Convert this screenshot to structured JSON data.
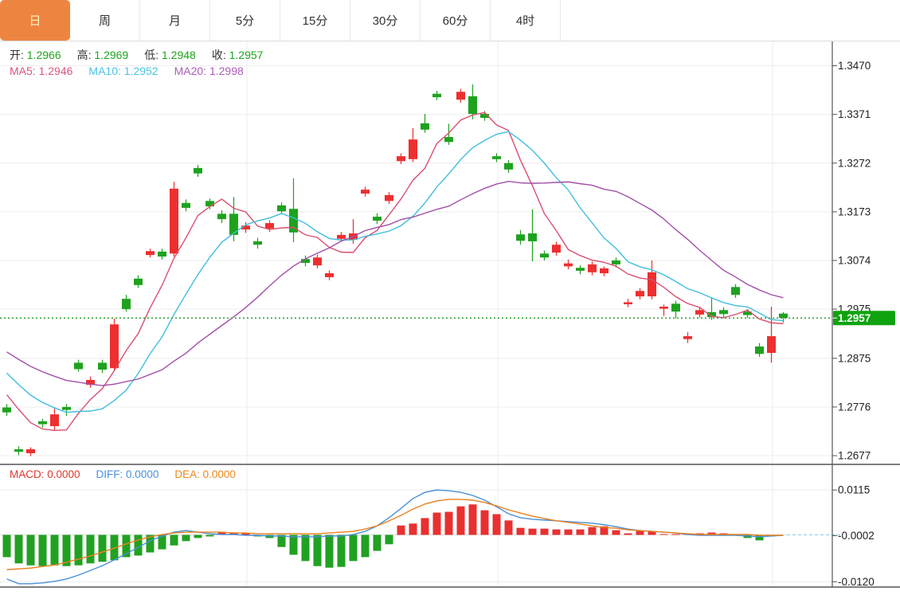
{
  "tabs": {
    "items": [
      {
        "label": "日",
        "active": true
      },
      {
        "label": "周",
        "active": false
      },
      {
        "label": "月",
        "active": false
      },
      {
        "label": "5分",
        "active": false
      },
      {
        "label": "15分",
        "active": false
      },
      {
        "label": "30分",
        "active": false
      },
      {
        "label": "60分",
        "active": false
      },
      {
        "label": "4时",
        "active": false
      }
    ],
    "active_bg": "#ed8540",
    "active_text": "#fbf2c0"
  },
  "ohlc_legend": {
    "items": [
      {
        "label": "开:",
        "value": "1.2966"
      },
      {
        "label": "高:",
        "value": "1.2969"
      },
      {
        "label": "低:",
        "value": "1.2948"
      },
      {
        "label": "收:",
        "value": "1.2957"
      }
    ],
    "value_color": "#1ca61c"
  },
  "ma_legend": {
    "items": [
      {
        "label": "MA5:",
        "value": "1.2946",
        "color": "#e0537a"
      },
      {
        "label": "MA10:",
        "value": "1.2952",
        "color": "#4cc3e2"
      },
      {
        "label": "MA20:",
        "value": "1.2998",
        "color": "#ab5cb8"
      }
    ]
  },
  "macd_legend": {
    "items": [
      {
        "label": "MACD:",
        "value": "0.0000",
        "color": "#d93a2e"
      },
      {
        "label": "DIFF:",
        "value": "0.0000",
        "color": "#4a90d9"
      },
      {
        "label": "DEA:",
        "value": "0.0000",
        "color": "#e8881f"
      }
    ]
  },
  "colors": {
    "up": "#ee2f2f",
    "down": "#1ea21e",
    "ma5": "#d94f6e",
    "ma10": "#41bedc",
    "ma20": "#a14fa8",
    "diff_line": "#4a90d9",
    "dea_line": "#e8811d",
    "hist_up": "#e93030",
    "hist_down": "#21a121",
    "grid": "#ececec",
    "axis_line": "#555555",
    "axis_text": "#222222",
    "current_price_line": "#2fa52f",
    "current_price_badge": "#0fa30f",
    "badge_text": "#ffffff",
    "zero_dash": "#85c9ea"
  },
  "chart_data": {
    "type": "candlestick+macd",
    "title": "",
    "legend_position": "top-left-overlay",
    "grid": true,
    "price_axis": {
      "side": "right",
      "ticks": [
        {
          "value": 1.347,
          "label": "1.3470"
        },
        {
          "value": 1.3371,
          "label": "1.3371"
        },
        {
          "value": 1.3272,
          "label": "1.3272"
        },
        {
          "value": 1.3173,
          "label": "1.3173"
        },
        {
          "value": 1.3074,
          "label": "1.3074"
        },
        {
          "value": 1.2975,
          "label": "1.2975"
        },
        {
          "value": 1.2875,
          "label": "1.2875"
        },
        {
          "value": 1.2776,
          "label": "1.2776"
        },
        {
          "value": 1.2677,
          "label": "1.2677"
        }
      ]
    },
    "current_price": {
      "value": 1.2957,
      "label": "1.2957"
    },
    "macd_axis": {
      "ticks": [
        {
          "value": 0.0115,
          "label": "0.0115"
        },
        {
          "value": -0.0002,
          "label": "-0.0002"
        },
        {
          "value": -0.012,
          "label": "-0.0120"
        }
      ]
    },
    "time_gridline_indices": [
      20,
      41,
      64
    ],
    "ma_periods": [
      5,
      10,
      20
    ],
    "ma_seed_closes": [
      1.299,
      1.2975,
      1.296,
      1.2945,
      1.2935,
      1.2925,
      1.2915,
      1.2905,
      1.289,
      1.287,
      1.292,
      1.2905,
      1.289,
      1.287,
      1.286,
      1.2835,
      1.2825,
      1.2805,
      1.2775
    ],
    "candles": [
      [
        1.2775,
        1.2782,
        1.2758,
        1.2765
      ],
      [
        1.269,
        1.2696,
        1.2678,
        1.2685
      ],
      [
        1.2682,
        1.2694,
        1.2676,
        1.269
      ],
      [
        1.2747,
        1.2752,
        1.2734,
        1.2741
      ],
      [
        1.2737,
        1.2774,
        1.2727,
        1.2761
      ],
      [
        1.2776,
        1.2782,
        1.2758,
        1.277
      ],
      [
        1.2866,
        1.2872,
        1.2848,
        1.2853
      ],
      [
        1.2821,
        1.2838,
        1.2815,
        1.2831
      ],
      [
        1.2866,
        1.2872,
        1.2845,
        1.2852
      ],
      [
        1.2855,
        1.2956,
        1.285,
        1.2944
      ],
      [
        1.2996,
        1.3004,
        1.297,
        1.2975
      ],
      [
        1.3037,
        1.3044,
        1.3018,
        1.3024
      ],
      [
        1.3085,
        1.3098,
        1.308,
        1.3093
      ],
      [
        1.3092,
        1.3098,
        1.3076,
        1.3082
      ],
      [
        1.3088,
        1.3234,
        1.3082,
        1.322
      ],
      [
        1.3191,
        1.3198,
        1.3174,
        1.3181
      ],
      [
        1.3262,
        1.3268,
        1.3244,
        1.3251
      ],
      [
        1.3195,
        1.32,
        1.3178,
        1.3184
      ],
      [
        1.3169,
        1.3176,
        1.315,
        1.3158
      ],
      [
        1.3169,
        1.3203,
        1.3113,
        1.3126
      ],
      [
        1.3137,
        1.3152,
        1.313,
        1.3145
      ],
      [
        1.3113,
        1.312,
        1.3098,
        1.3106
      ],
      [
        1.3139,
        1.3156,
        1.3132,
        1.315
      ],
      [
        1.3186,
        1.3192,
        1.3168,
        1.3174
      ],
      [
        1.3179,
        1.3241,
        1.3111,
        1.3131
      ],
      [
        1.3077,
        1.3084,
        1.3062,
        1.3069
      ],
      [
        1.3064,
        1.3086,
        1.3058,
        1.308
      ],
      [
        1.304,
        1.3054,
        1.3034,
        1.3048
      ],
      [
        1.3118,
        1.3132,
        1.3112,
        1.3126
      ],
      [
        1.3116,
        1.3158,
        1.3108,
        1.3129
      ],
      [
        1.321,
        1.3224,
        1.3204,
        1.3218
      ],
      [
        1.3163,
        1.317,
        1.3148,
        1.3155
      ],
      [
        1.3195,
        1.3213,
        1.3189,
        1.3207
      ],
      [
        1.3276,
        1.3292,
        1.327,
        1.3286
      ],
      [
        1.328,
        1.3343,
        1.3274,
        1.332
      ],
      [
        1.3353,
        1.3372,
        1.3334,
        1.334
      ],
      [
        1.3413,
        1.3419,
        1.34,
        1.3406
      ],
      [
        1.3325,
        1.3352,
        1.3309,
        1.3315
      ],
      [
        1.3401,
        1.3423,
        1.3395,
        1.3417
      ],
      [
        1.3408,
        1.3432,
        1.3361,
        1.3372
      ],
      [
        1.3372,
        1.3378,
        1.3358,
        1.3364
      ],
      [
        1.3286,
        1.3292,
        1.3274,
        1.328
      ],
      [
        1.3272,
        1.3278,
        1.3252,
        1.3259
      ],
      [
        1.3127,
        1.3136,
        1.3106,
        1.3114
      ],
      [
        1.3129,
        1.3178,
        1.3072,
        1.3113
      ],
      [
        1.3088,
        1.3094,
        1.3074,
        1.308
      ],
      [
        1.309,
        1.3112,
        1.3084,
        1.3106
      ],
      [
        1.3062,
        1.3076,
        1.3056,
        1.3068
      ],
      [
        1.3059,
        1.3064,
        1.3046,
        1.3053
      ],
      [
        1.305,
        1.3072,
        1.3044,
        1.3066
      ],
      [
        1.3048,
        1.3062,
        1.3042,
        1.3058
      ],
      [
        1.3074,
        1.308,
        1.306,
        1.3066
      ],
      [
        1.2985,
        1.2996,
        1.2979,
        1.2989
      ],
      [
        1.3001,
        1.3018,
        1.2995,
        1.3012
      ],
      [
        1.3001,
        1.3074,
        1.2995,
        1.305
      ],
      [
        1.2977,
        1.2984,
        1.2961,
        1.298
      ],
      [
        1.2986,
        1.2992,
        1.2956,
        1.297
      ],
      [
        1.2914,
        1.2928,
        1.2906,
        1.292
      ],
      [
        1.2964,
        1.2978,
        1.2958,
        1.2973
      ],
      [
        1.2969,
        1.2999,
        1.2953,
        1.2959
      ],
      [
        1.2973,
        1.2979,
        1.2959,
        1.2965
      ],
      [
        1.302,
        1.3026,
        1.2998,
        1.3004
      ],
      [
        1.297,
        1.2975,
        1.2957,
        1.2963
      ],
      [
        1.2899,
        1.2906,
        1.2878,
        1.2884
      ],
      [
        1.2886,
        1.298,
        1.2866,
        1.292
      ],
      [
        1.2966,
        1.2969,
        1.2948,
        1.2957
      ]
    ],
    "macd": {
      "diff": [
        -0.0113,
        -0.0125,
        -0.0125,
        -0.0123,
        -0.0119,
        -0.0113,
        -0.0103,
        -0.0091,
        -0.0079,
        -0.0064,
        -0.0048,
        -0.0032,
        -0.0015,
        -0.0003,
        0.0007,
        0.0011,
        0.0007,
        0.0003,
        0.0001,
        0.0001,
        -0.0001,
        -0.0001,
        -0.0003,
        -0.0003,
        -0.0005,
        -0.0005,
        -0.0005,
        -0.0003,
        -0.0003,
        0.0001,
        0.0009,
        0.0023,
        0.0044,
        0.0068,
        0.0093,
        0.0109,
        0.0115,
        0.0113,
        0.0109,
        0.0101,
        0.0089,
        0.0072,
        0.0054,
        0.0044,
        0.004,
        0.0038,
        0.0036,
        0.0034,
        0.0032,
        0.003,
        0.0026,
        0.0021,
        0.0015,
        0.0011,
        0.0009,
        0.0007,
        0.0005,
        0.0001,
        -0.0001,
        -0.0001,
        -0.0001,
        -0.0001,
        -0.0003,
        -0.0005,
        -0.0003,
        -0.0001
      ],
      "dea": [
        -0.0089,
        -0.0087,
        -0.0085,
        -0.0081,
        -0.0077,
        -0.007,
        -0.0062,
        -0.0054,
        -0.0044,
        -0.0034,
        -0.0023,
        -0.0013,
        -0.0005,
        0.0001,
        0.0005,
        0.0007,
        0.0007,
        0.0007,
        0.0007,
        0.0005,
        0.0005,
        0.0003,
        0.0003,
        0.0003,
        0.0003,
        0.0003,
        0.0003,
        0.0005,
        0.0007,
        0.0009,
        0.0015,
        0.0023,
        0.0036,
        0.005,
        0.0066,
        0.0079,
        0.0087,
        0.0091,
        0.0091,
        0.0089,
        0.0083,
        0.0074,
        0.0064,
        0.0056,
        0.0048,
        0.0042,
        0.0036,
        0.0032,
        0.0028,
        0.0023,
        0.0019,
        0.0017,
        0.0013,
        0.0011,
        0.0009,
        0.0007,
        0.0005,
        0.0003,
        0.0001,
        0.0001,
        0.0001,
        0.0001,
        0.0001,
        -0.0001,
        -0.0001,
        -0.0001
      ],
      "hist": [
        -0.0057,
        -0.0073,
        -0.0078,
        -0.008,
        -0.0078,
        -0.008,
        -0.0078,
        -0.0073,
        -0.0069,
        -0.0065,
        -0.0057,
        -0.0053,
        -0.0045,
        -0.0037,
        -0.0027,
        -0.0016,
        -0.0008,
        -0.0004,
        0.0008,
        0.0006,
        0.0004,
        -0.0004,
        -0.0008,
        -0.0031,
        -0.0051,
        -0.0067,
        -0.008,
        -0.0084,
        -0.0082,
        -0.0067,
        -0.0057,
        -0.0041,
        -0.0024,
        0.0024,
        0.0029,
        0.0043,
        0.0057,
        0.0059,
        0.0073,
        0.0078,
        0.0063,
        0.0053,
        0.0037,
        0.0018,
        0.0016,
        0.0016,
        0.0014,
        0.0014,
        0.0014,
        0.002,
        0.0022,
        0.0012,
        0.0004,
        0.001,
        0.001,
        0.0002,
        0.0002,
        0.0004,
        0.0004,
        0.0006,
        0.0004,
        0.0002,
        -0.0008,
        -0.0014,
        -0.0004,
        0.0
      ]
    }
  }
}
